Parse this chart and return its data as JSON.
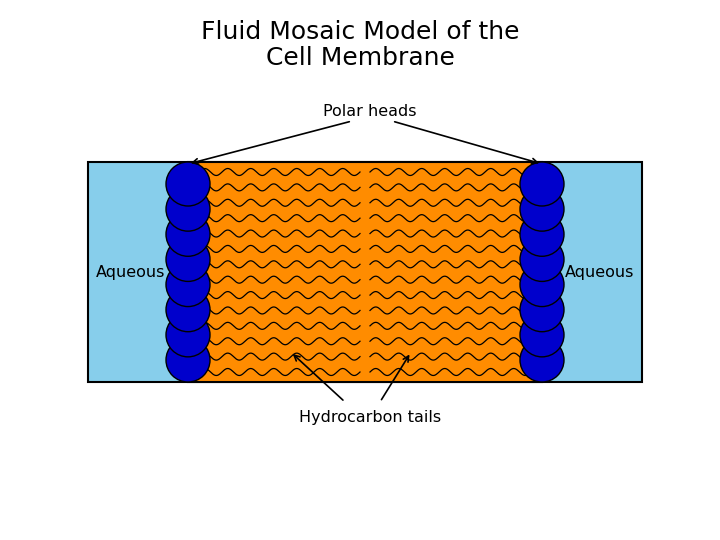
{
  "title_line1": "Fluid Mosaic Model of the",
  "title_line2": "Cell Membrane",
  "title_fontsize": 18,
  "title_fontweight": "normal",
  "bg_color": "#ffffff",
  "aqueous_color": "#87CEEB",
  "membrane_color": "#FF8C00",
  "head_color": "#0000CC",
  "wavy_color": "#000000",
  "label_polar_heads": "Polar heads",
  "label_aqueous_left": "Aqueous",
  "label_aqueous_right": "Aqueous",
  "label_hydrocarbon": "Hydrocarbon tails",
  "fig_w": 7.2,
  "fig_h": 5.4,
  "dpi": 100
}
